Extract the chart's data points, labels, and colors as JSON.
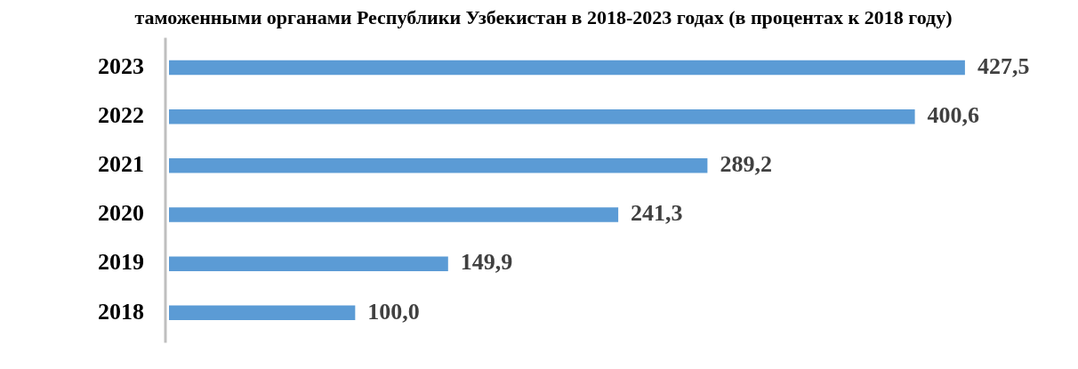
{
  "chart_data": {
    "type": "bar",
    "orientation": "horizontal",
    "title": "таможенными органами Республики Узбекистан в 2018-2023 годах (в процентах к 2018 году)",
    "categories": [
      "2023",
      "2022",
      "2021",
      "2020",
      "2019",
      "2018"
    ],
    "values": [
      427.5,
      400.6,
      289.2,
      241.3,
      149.9,
      100.0
    ],
    "value_labels": [
      "427,5",
      "400,6",
      "289,2",
      "241,3",
      "149,9",
      "100,0"
    ],
    "color": "#5b9bd5",
    "grid": false,
    "legend": false
  }
}
